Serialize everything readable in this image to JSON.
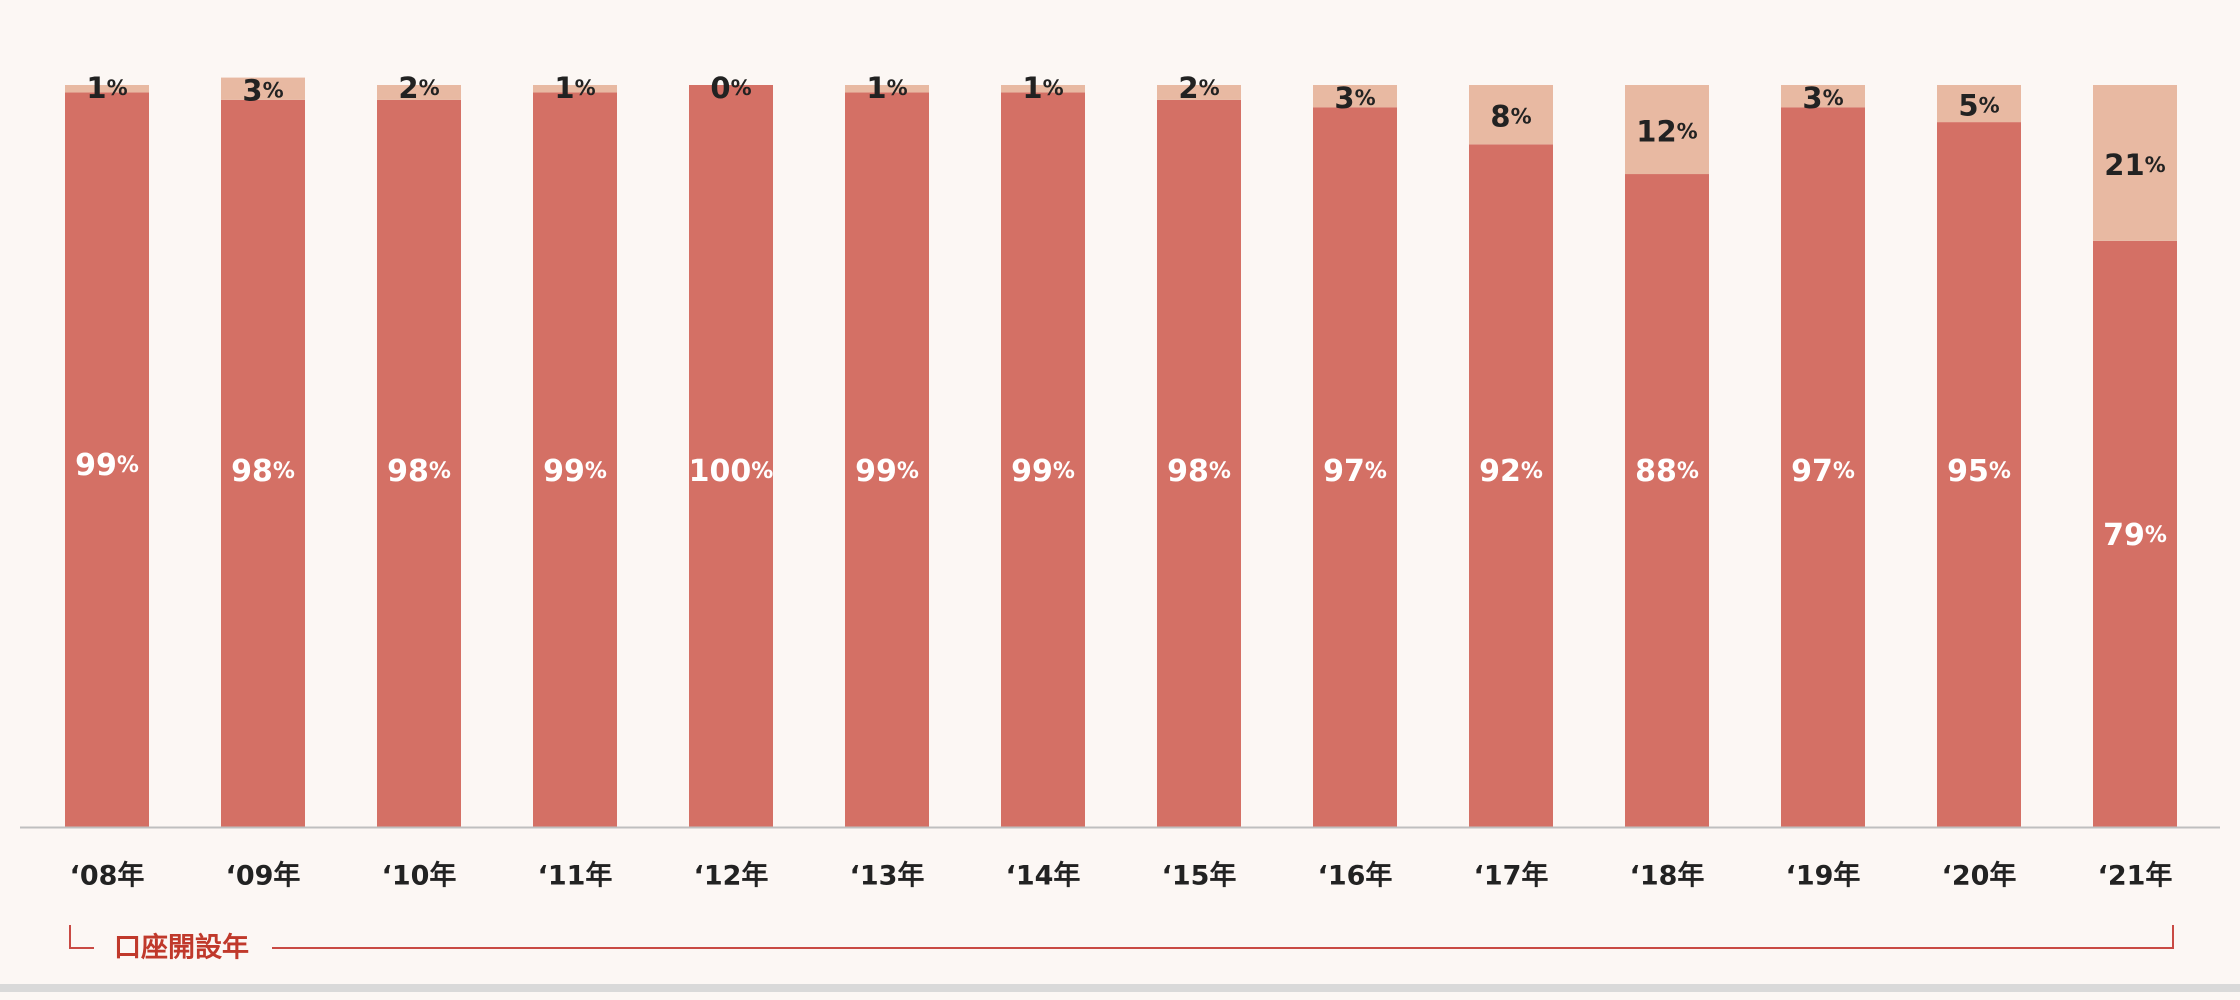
{
  "chart_data": {
    "type": "bar",
    "stacked": true,
    "normalized": true,
    "categories": [
      "‘08年",
      "‘09年",
      "‘10年",
      "‘11年",
      "‘12年",
      "‘13年",
      "‘14年",
      "‘15年",
      "‘16年",
      "‘17年",
      "‘18年",
      "‘19年",
      "‘20年",
      "‘21年"
    ],
    "series": [
      {
        "values": [
          99,
          98,
          98,
          99,
          100,
          99,
          99,
          98,
          97,
          92,
          88,
          97,
          95,
          79
        ],
        "color": "#d47065",
        "label_color": "#ffffff"
      },
      {
        "values": [
          1,
          3,
          2,
          1,
          0,
          1,
          1,
          2,
          3,
          8,
          12,
          3,
          5,
          21
        ],
        "color": "#e8b9a2",
        "label_color": "#222222"
      }
    ],
    "ylim": [
      0,
      100
    ],
    "value_suffix": "%",
    "grid": false,
    "legend": "none",
    "axis_group_label": "口座開設年",
    "colors": {
      "background": "#fcf7f4",
      "axis": "#bfbfbf",
      "bracket": "#c94a44",
      "bracket_text": "#c0392b",
      "tick_text": "#222222"
    }
  }
}
